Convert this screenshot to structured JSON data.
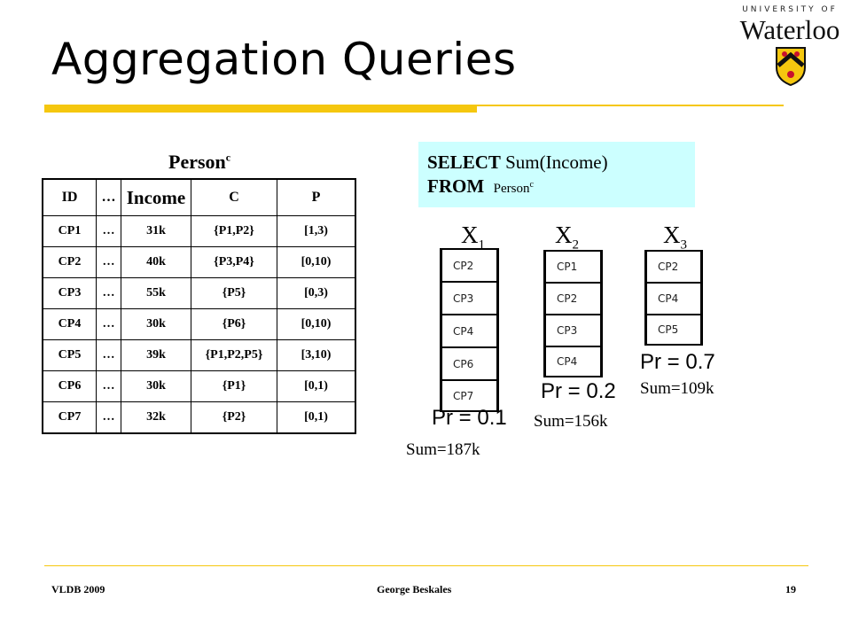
{
  "slide": {
    "title": "Aggregation Queries",
    "logo": {
      "top": "UNIVERSITY OF",
      "word": "Waterloo"
    },
    "table_title": {
      "name": "Person",
      "sup": "c"
    },
    "table": {
      "headers": [
        "ID",
        "…",
        "Income",
        "C",
        "P"
      ],
      "rows": [
        [
          "CP1",
          "…",
          "31k",
          "{P1,P2}",
          "[1,3)"
        ],
        [
          "CP2",
          "…",
          "40k",
          "{P3,P4}",
          "[0,10)"
        ],
        [
          "CP3",
          "…",
          "55k",
          "{P5}",
          "[0,3)"
        ],
        [
          "CP4",
          "…",
          "30k",
          "{P6}",
          "[0,10)"
        ],
        [
          "CP5",
          "…",
          "39k",
          "{P1,P2,P5}",
          "[3,10)"
        ],
        [
          "CP6",
          "…",
          "30k",
          "{P1}",
          "[0,1)"
        ],
        [
          "CP7",
          "…",
          "32k",
          "{P2}",
          "[0,1)"
        ]
      ]
    },
    "query": {
      "select_kw": "SELECT",
      "select_expr": " Sum(Income)",
      "from_kw": "FROM",
      "from_table": "Person",
      "from_sup": "c"
    },
    "worlds": [
      {
        "x": "X",
        "sub": "1",
        "items": [
          "CP2",
          "CP3",
          "CP4",
          "CP6",
          "CP7"
        ],
        "pr": "Pr = 0.1",
        "sum": "Sum=187k"
      },
      {
        "x": "X",
        "sub": "2",
        "items": [
          "CP1",
          "CP2",
          "CP3",
          "CP4"
        ],
        "pr": "Pr = 0.2",
        "sum": "Sum=156k"
      },
      {
        "x": "X",
        "sub": "3",
        "items": [
          "CP2",
          "CP4",
          "CP5"
        ],
        "pr": "Pr = 0.7",
        "sum": "Sum=109k"
      }
    ],
    "footer": {
      "left": "VLDB 2009",
      "center": "George Beskales",
      "page": "19"
    },
    "colors": {
      "accent": "#f5c70f",
      "query_bg": "#ccffff"
    }
  }
}
